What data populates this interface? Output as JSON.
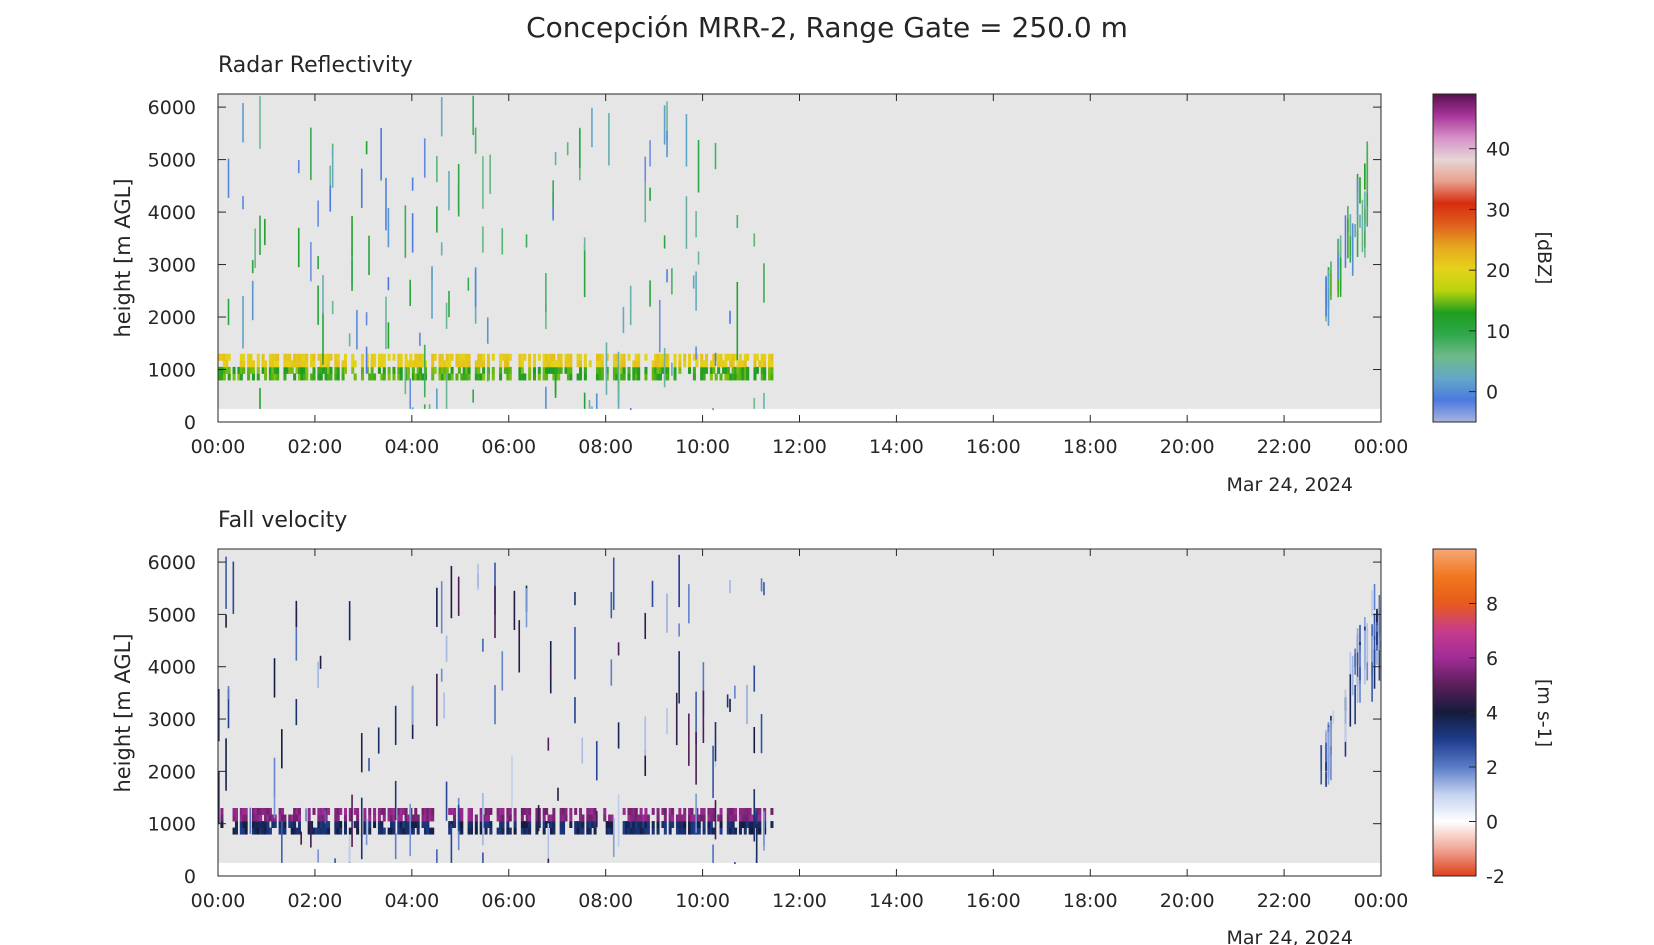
{
  "figure": {
    "title": "Concepción MRR-2, Range Gate = 250.0 m"
  },
  "chart_data": [
    {
      "type": "heatmap",
      "title": "Radar Reflectivity",
      "xlabel": "",
      "ylabel": "height [m AGL]",
      "date_label": "Mar 24, 2024",
      "x_range_hours": [
        0,
        24
      ],
      "xticks": [
        "00:00",
        "02:00",
        "04:00",
        "06:00",
        "08:00",
        "10:00",
        "12:00",
        "14:00",
        "16:00",
        "18:00",
        "20:00",
        "22:00",
        "00:00"
      ],
      "ylim": [
        0,
        6250
      ],
      "yticks": [
        0,
        1000,
        2000,
        3000,
        4000,
        5000,
        6000
      ],
      "data_height_range_m": [
        250,
        6250
      ],
      "range_gate_m": 250,
      "data_coverage_hours": [
        [
          0,
          11.45
        ],
        [
          22.75,
          24
        ]
      ],
      "no_data_color": "#e6e6e6",
      "colorbar": {
        "label": "[dBZ]",
        "range": [
          -5,
          49
        ],
        "ticks": [
          0,
          10,
          20,
          30,
          40
        ],
        "stops": [
          "#a7b4e0",
          "#4c79e0",
          "#62a8c8",
          "#6fba8a",
          "#2fa84a",
          "#1e9e1e",
          "#b8d40e",
          "#e6d21a",
          "#e6a81e",
          "#e0601e",
          "#d62c0e",
          "#e8a08c",
          "#e6d6d6",
          "#d690c8",
          "#a8369a",
          "#5a1050"
        ]
      },
      "features": [
        {
          "name": "bright band",
          "height_m": [
            800,
            1250
          ],
          "hours": [
            0,
            11.45
          ],
          "value_dbz": [
            12,
            22
          ]
        },
        {
          "name": "scattered echoes",
          "height_m": [
            250,
            6250
          ],
          "hours": [
            0,
            11.45
          ],
          "value_dbz": [
            -3,
            12
          ]
        },
        {
          "name": "evening echoes",
          "height_m": [
            250,
            6250
          ],
          "hours": [
            22.75,
            24
          ],
          "value_dbz": [
            -3,
            15
          ]
        }
      ]
    },
    {
      "type": "heatmap",
      "title": "Fall velocity",
      "xlabel": "",
      "ylabel": "height [m AGL]",
      "date_label": "Mar 24, 2024",
      "x_range_hours": [
        0,
        24
      ],
      "xticks": [
        "00:00",
        "02:00",
        "04:00",
        "06:00",
        "08:00",
        "10:00",
        "12:00",
        "14:00",
        "16:00",
        "18:00",
        "20:00",
        "22:00",
        "00:00"
      ],
      "ylim": [
        0,
        6250
      ],
      "yticks": [
        0,
        1000,
        2000,
        3000,
        4000,
        5000,
        6000
      ],
      "data_height_range_m": [
        250,
        6250
      ],
      "range_gate_m": 250,
      "data_coverage_hours": [
        [
          0,
          11.45
        ],
        [
          22.75,
          24
        ]
      ],
      "no_data_color": "#e6e6e6",
      "colorbar": {
        "label": "[m s-1]",
        "range": [
          -2,
          10
        ],
        "ticks": [
          -2,
          0,
          2,
          4,
          6,
          8
        ],
        "stops": [
          "#e0401a",
          "#f0a898",
          "#ffffff",
          "#c4d2ee",
          "#5a7cc8",
          "#1e3c8c",
          "#141c3c",
          "#5a1e5a",
          "#a02c96",
          "#c83c8c",
          "#e85a1e",
          "#f0781e",
          "#f5a878"
        ]
      },
      "features": [
        {
          "name": "bright band",
          "height_m": [
            800,
            1250
          ],
          "hours": [
            0,
            11.45
          ],
          "value_ms": [
            3,
            6
          ]
        },
        {
          "name": "scattered echoes",
          "height_m": [
            250,
            6250
          ],
          "hours": [
            0,
            11.45
          ],
          "value_ms": [
            1,
            5
          ]
        },
        {
          "name": "evening echoes",
          "height_m": [
            250,
            6250
          ],
          "hours": [
            22.75,
            24
          ],
          "value_ms": [
            1,
            4
          ]
        }
      ]
    }
  ]
}
